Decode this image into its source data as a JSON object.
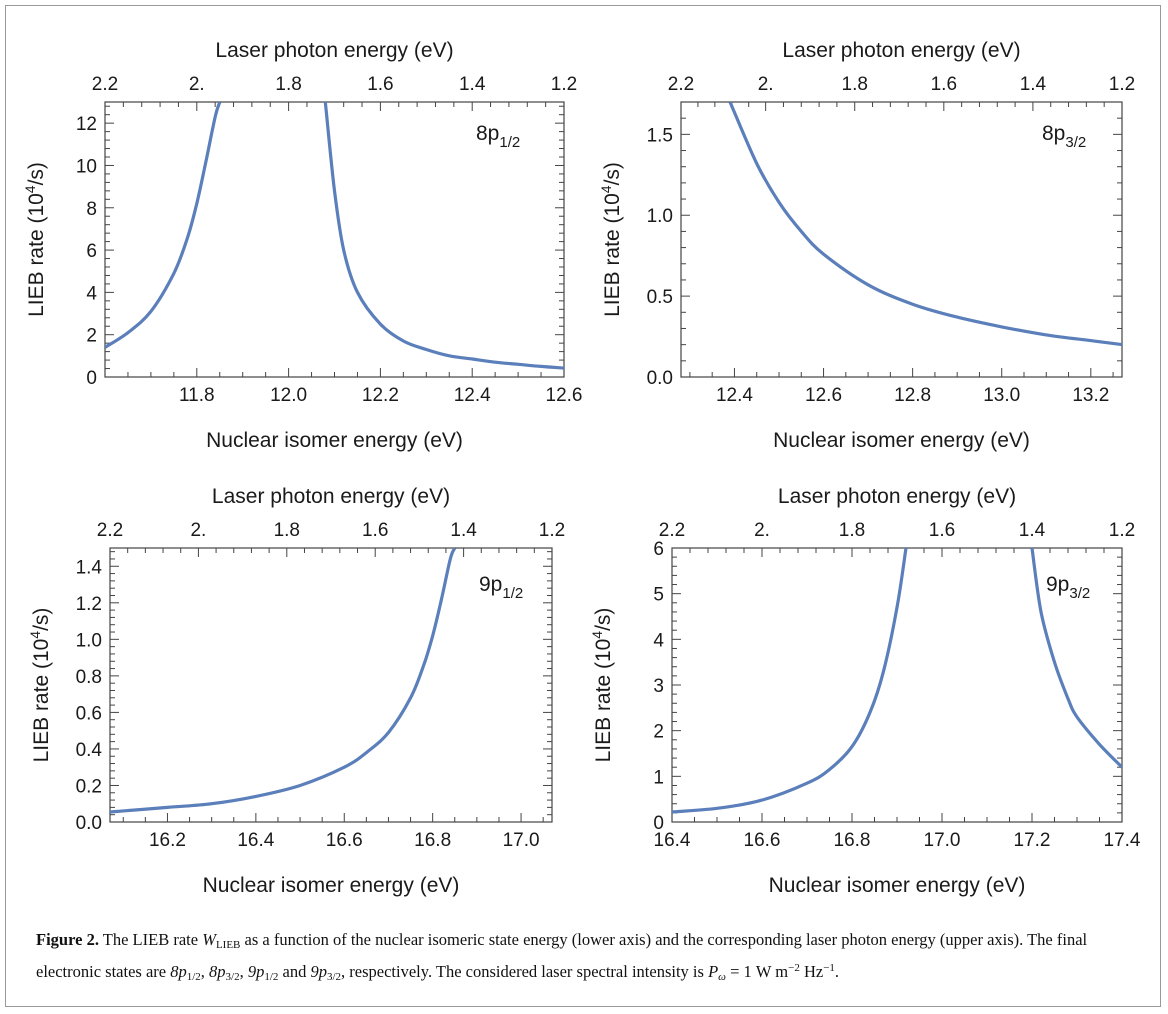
{
  "chart_data": [
    {
      "type": "line",
      "state": {
        "main": "8p",
        "sub": "1/2"
      },
      "xlabel": "Nuclear isomer energy (eV)",
      "ylabel_pre": "LIEB rate (10",
      "ylabel_sup": "4",
      "ylabel_post": "/s)",
      "top_label": "Laser photon energy (eV)",
      "xlim": [
        11.6,
        12.6
      ],
      "ylim": [
        0,
        13
      ],
      "x_ticks": [
        11.8,
        12.0,
        12.2,
        12.4,
        12.6
      ],
      "x_tick_labels": [
        "11.8",
        "12.0",
        "12.2",
        "12.4",
        "12.6"
      ],
      "y_ticks": [
        0,
        2,
        4,
        6,
        8,
        10,
        12
      ],
      "y_tick_labels": [
        "0",
        "2",
        "4",
        "6",
        "8",
        "10",
        "12"
      ],
      "top_ticks": [
        11.6,
        11.8,
        12.0,
        12.2,
        12.4,
        12.6
      ],
      "top_tick_labels": [
        "2.2",
        "2.",
        "1.8",
        "1.6",
        "1.4",
        "1.2"
      ],
      "series": [
        {
          "segments": [
            {
              "x": [
                11.6,
                11.65,
                11.7,
                11.75,
                11.78,
                11.8,
                11.82,
                11.84,
                11.85
              ],
              "y": [
                1.4,
                2.1,
                3.1,
                4.9,
                6.6,
                8.2,
                10.2,
                12.3,
                13.0
              ]
            },
            {
              "x": [
                12.08,
                12.1,
                12.12,
                12.15,
                12.2,
                12.25,
                12.3,
                12.35,
                12.4,
                12.45,
                12.5,
                12.55,
                12.6
              ],
              "y": [
                13.0,
                8.8,
                6.0,
                4.0,
                2.5,
                1.7,
                1.3,
                1.0,
                0.85,
                0.7,
                0.6,
                0.5,
                0.42
              ]
            }
          ]
        }
      ]
    },
    {
      "type": "line",
      "state": {
        "main": "8p",
        "sub": "3/2"
      },
      "xlabel": "Nuclear isomer energy (eV)",
      "ylabel_pre": "LIEB rate (10",
      "ylabel_sup": "4",
      "ylabel_post": "/s)",
      "top_label": "Laser photon energy (eV)",
      "xlim": [
        12.28,
        13.27
      ],
      "ylim": [
        0,
        1.7
      ],
      "x_ticks": [
        12.4,
        12.6,
        12.8,
        13.0,
        13.2
      ],
      "x_tick_labels": [
        "12.4",
        "12.6",
        "12.8",
        "13.0",
        "13.2"
      ],
      "y_ticks": [
        0,
        0.5,
        1.0,
        1.5
      ],
      "y_tick_labels": [
        "0.0",
        "0.5",
        "1.0",
        "1.5"
      ],
      "top_ticks": [
        12.28,
        12.47,
        12.67,
        12.87,
        13.07,
        13.27
      ],
      "top_tick_labels": [
        "2.2",
        "2.",
        "1.8",
        "1.6",
        "1.4",
        "1.2"
      ],
      "series": [
        {
          "segments": [
            {
              "x": [
                12.39,
                12.45,
                12.5,
                12.55,
                12.6,
                12.7,
                12.8,
                12.9,
                13.0,
                13.1,
                13.2,
                13.27
              ],
              "y": [
                1.7,
                1.32,
                1.08,
                0.9,
                0.76,
                0.57,
                0.45,
                0.37,
                0.31,
                0.26,
                0.225,
                0.2
              ]
            }
          ]
        }
      ]
    },
    {
      "type": "line",
      "state": {
        "main": "9p",
        "sub": "1/2"
      },
      "xlabel": "Nuclear isomer energy (eV)",
      "ylabel_pre": "LIEB rate (10",
      "ylabel_sup": "4",
      "ylabel_post": "/s)",
      "top_label": "Laser photon energy (eV)",
      "xlim": [
        16.07,
        17.07
      ],
      "ylim": [
        0,
        1.5
      ],
      "x_ticks": [
        16.2,
        16.4,
        16.6,
        16.8,
        17.0
      ],
      "x_tick_labels": [
        "16.2",
        "16.4",
        "16.6",
        "16.8",
        "17.0"
      ],
      "y_ticks": [
        0,
        0.2,
        0.4,
        0.6,
        0.8,
        1.0,
        1.2,
        1.4
      ],
      "y_tick_labels": [
        "0.0",
        "0.2",
        "0.4",
        "0.6",
        "0.8",
        "1.0",
        "1.2",
        "1.4"
      ],
      "top_ticks": [
        16.07,
        16.27,
        16.47,
        16.67,
        16.87,
        17.07
      ],
      "top_tick_labels": [
        "2.2",
        "2.",
        "1.8",
        "1.6",
        "1.4",
        "1.2"
      ],
      "series": [
        {
          "segments": [
            {
              "x": [
                16.07,
                16.2,
                16.3,
                16.4,
                16.5,
                16.6,
                16.65,
                16.7,
                16.75,
                16.78,
                16.8,
                16.82,
                16.84,
                16.85
              ],
              "y": [
                0.055,
                0.08,
                0.1,
                0.14,
                0.2,
                0.3,
                0.38,
                0.49,
                0.68,
                0.86,
                1.02,
                1.22,
                1.44,
                1.5
              ]
            }
          ]
        }
      ]
    },
    {
      "type": "line",
      "state": {
        "main": "9p",
        "sub": "3/2"
      },
      "xlabel": "Nuclear isomer energy (eV)",
      "ylabel_pre": "LIEB rate (10",
      "ylabel_sup": "4",
      "ylabel_post": "/s)",
      "top_label": "Laser photon energy (eV)",
      "xlim": [
        16.4,
        17.4
      ],
      "ylim": [
        0,
        6
      ],
      "x_ticks": [
        16.4,
        16.6,
        16.8,
        17.0,
        17.2,
        17.4
      ],
      "x_tick_labels": [
        "16.4",
        "16.6",
        "16.8",
        "17.0",
        "17.2",
        "17.4"
      ],
      "y_ticks": [
        0,
        1,
        2,
        3,
        4,
        5,
        6
      ],
      "y_tick_labels": [
        "0",
        "1",
        "2",
        "3",
        "4",
        "5",
        "6"
      ],
      "top_ticks": [
        16.4,
        16.6,
        16.8,
        17.0,
        17.2,
        17.4
      ],
      "top_tick_labels": [
        "2.2",
        "2.",
        "1.8",
        "1.6",
        "1.4",
        "1.2"
      ],
      "series": [
        {
          "segments": [
            {
              "x": [
                16.4,
                16.5,
                16.6,
                16.7,
                16.75,
                16.8,
                16.84,
                16.87,
                16.9,
                16.92
              ],
              "y": [
                0.22,
                0.3,
                0.48,
                0.85,
                1.15,
                1.65,
                2.4,
                3.3,
                4.7,
                6.0
              ]
            },
            {
              "x": [
                17.2,
                17.22,
                17.25,
                17.28,
                17.3,
                17.35,
                17.4
              ],
              "y": [
                6.0,
                4.6,
                3.5,
                2.7,
                2.3,
                1.7,
                1.2
              ]
            }
          ]
        }
      ]
    }
  ],
  "caption": {
    "label": "Figure 2.",
    "t1": " The LIEB rate ",
    "w": "W",
    "w_sub": "LIEB",
    "t2": " as a function of the nuclear isomeric state energy (lower axis) and the corresponding laser photon energy (upper axis). The final electronic states are ",
    "s1": "8p",
    "s1_sub": "1/2",
    "sep1": ", ",
    "s2": "8p",
    "s2_sub": "3/2",
    "sep2": ", ",
    "s3": "9p",
    "s3_sub": "1/2",
    "and": " and ",
    "s4": "9p",
    "s4_sub": "3/2",
    "t3": ", respectively. The considered laser spectral intensity is ",
    "p": "P",
    "p_sub": "ω",
    "eq": " = 1 W m",
    "m_sup": "−2",
    "hz": " Hz",
    "hz_sup": "−1",
    "end": "."
  }
}
